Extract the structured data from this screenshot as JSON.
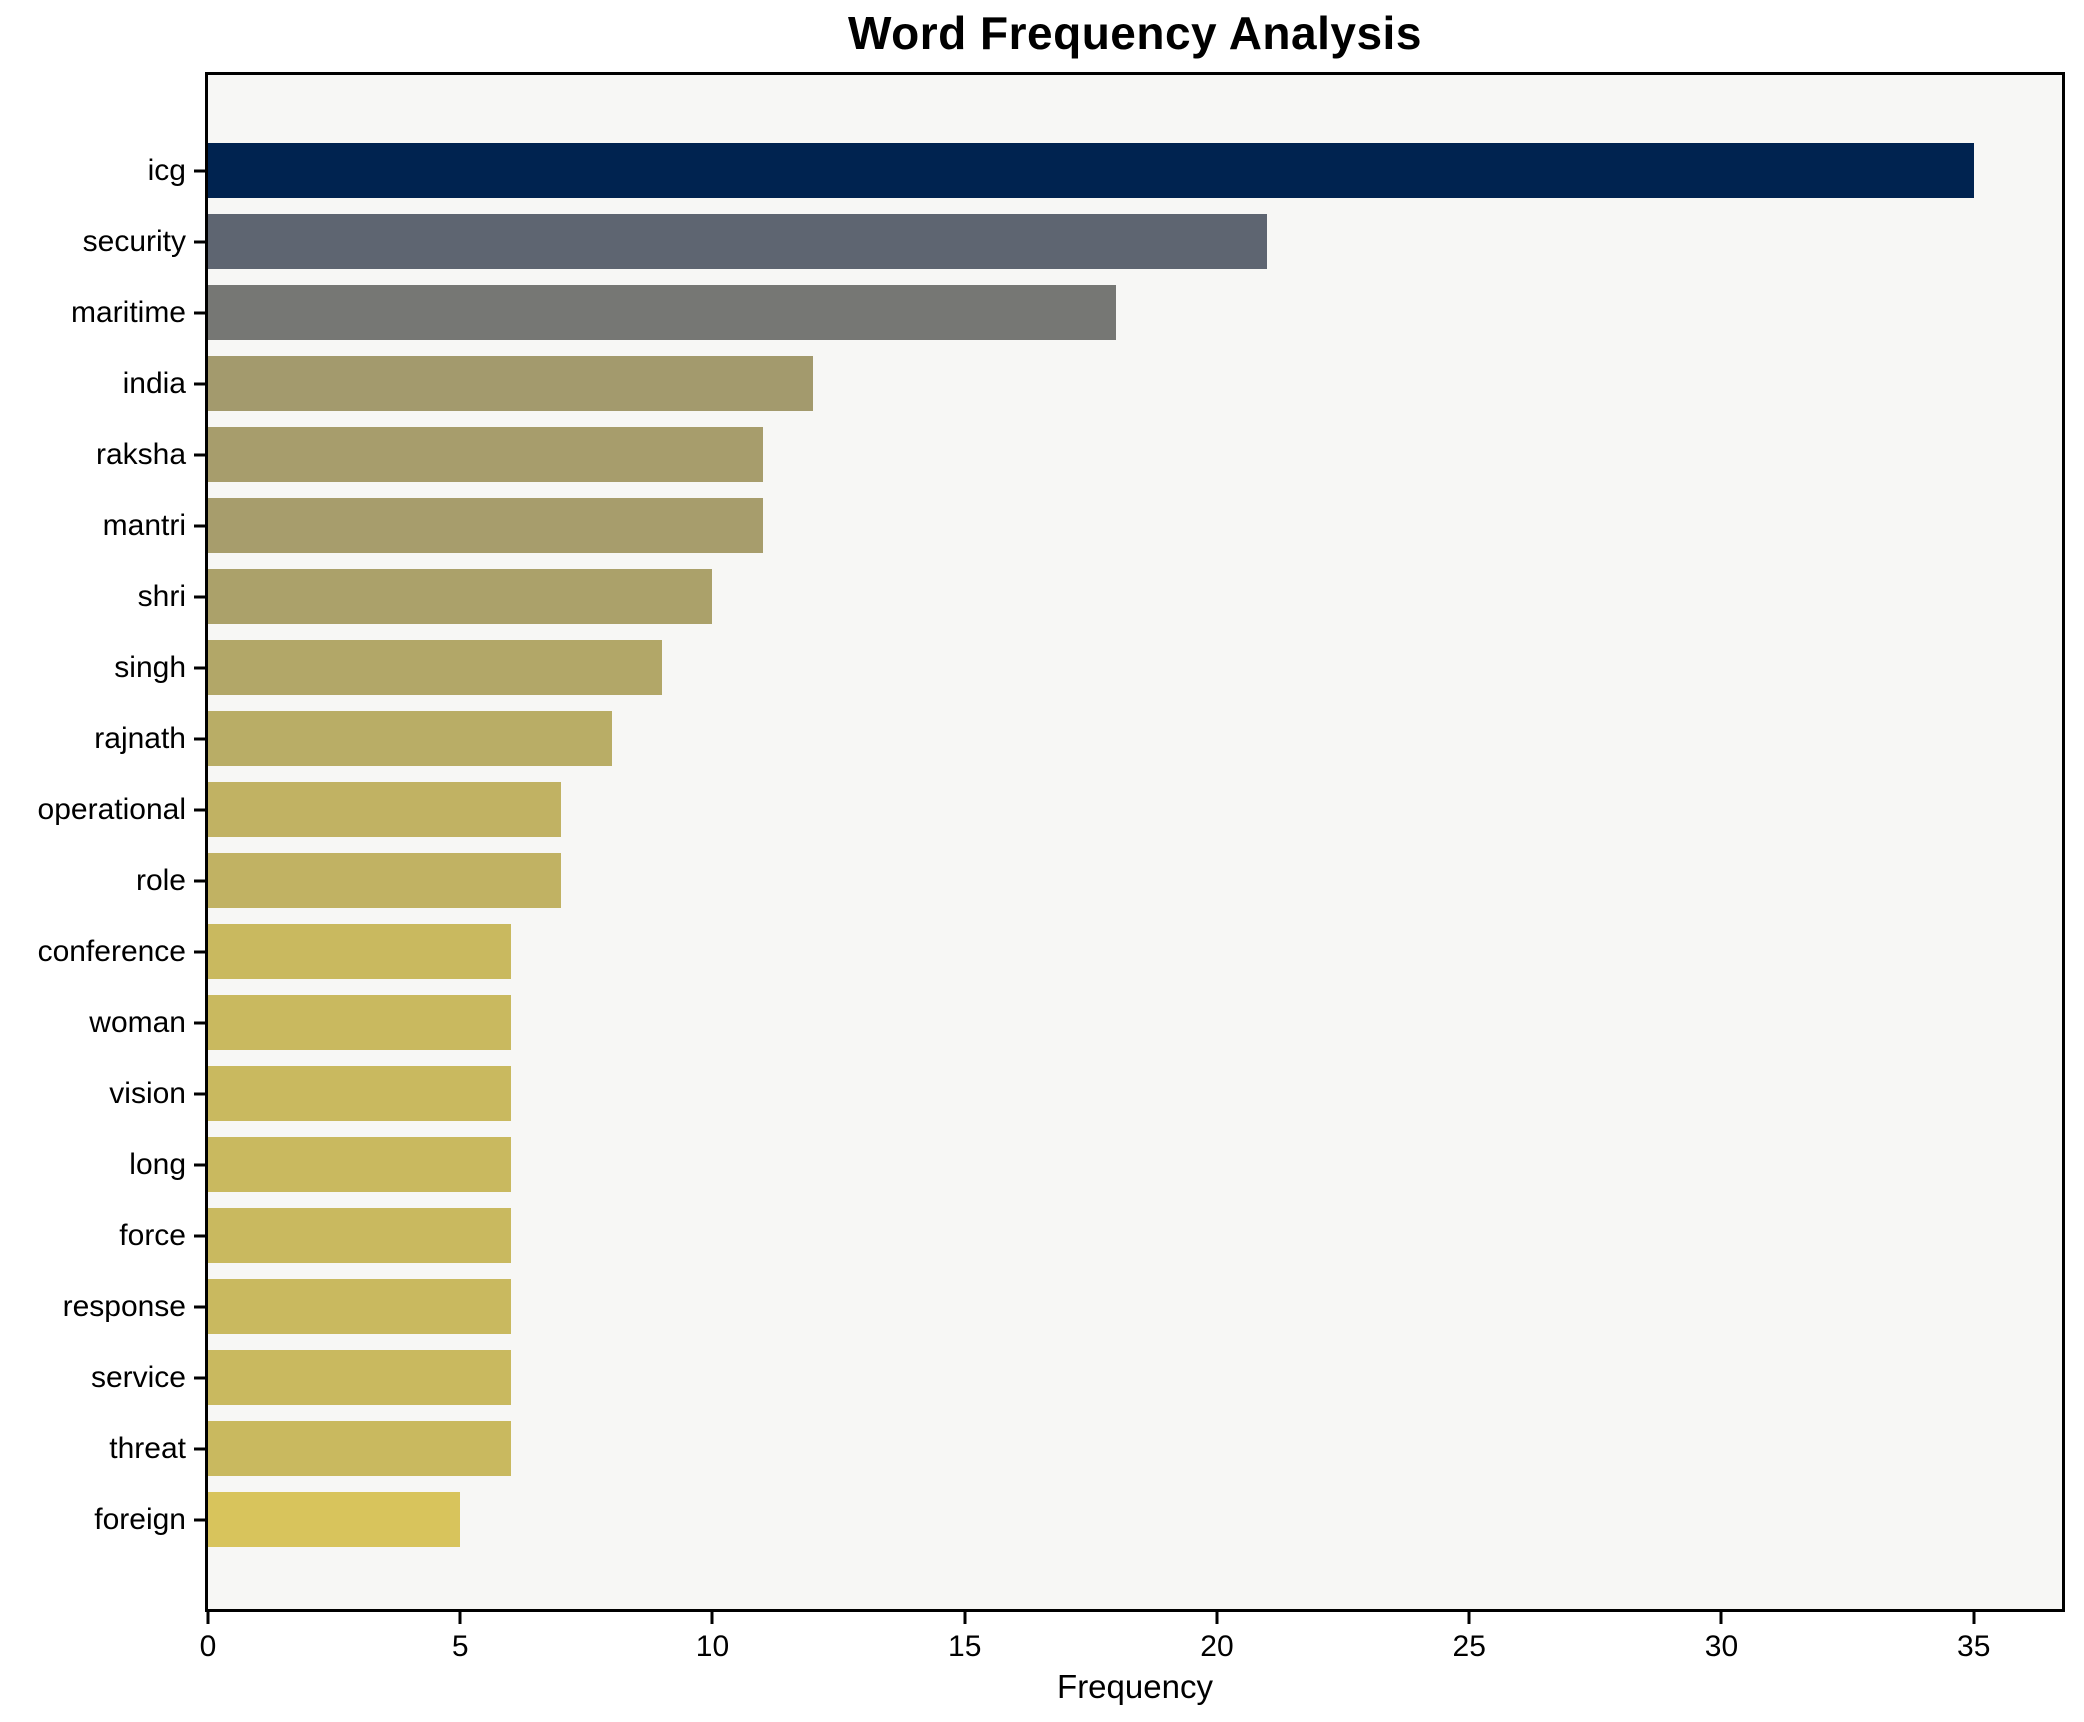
{
  "chart_data": {
    "type": "bar",
    "orientation": "horizontal",
    "title": "Word Frequency Analysis",
    "xlabel": "Frequency",
    "ylabel": "",
    "categories": [
      "icg",
      "security",
      "maritime",
      "india",
      "raksha",
      "mantri",
      "shri",
      "singh",
      "rajnath",
      "operational",
      "role",
      "conference",
      "woman",
      "vision",
      "long",
      "force",
      "response",
      "service",
      "threat",
      "foreign"
    ],
    "values": [
      35,
      21,
      18,
      12,
      11,
      11,
      10,
      9,
      8,
      7,
      7,
      6,
      6,
      6,
      6,
      6,
      6,
      6,
      6,
      5
    ],
    "bar_colors": [
      "#002350",
      "#5e6571",
      "#767774",
      "#a39a6d",
      "#a79d6c",
      "#a79d6c",
      "#aba16a",
      "#b2a768",
      "#b9ad66",
      "#c1b263",
      "#c1b263",
      "#c9b95f",
      "#c9b95f",
      "#c9b95f",
      "#c9b95f",
      "#c9b95f",
      "#c9b95f",
      "#c9b95f",
      "#c9b95f",
      "#d8c45c"
    ],
    "xlim": [
      0,
      36.75
    ],
    "xticks": [
      0,
      5,
      10,
      15,
      20,
      25,
      30,
      35
    ],
    "grid": false,
    "legend": "none",
    "plot_bg": "#f7f7f5",
    "figure_bg": "#ffffff",
    "spine_color": "#000000"
  }
}
